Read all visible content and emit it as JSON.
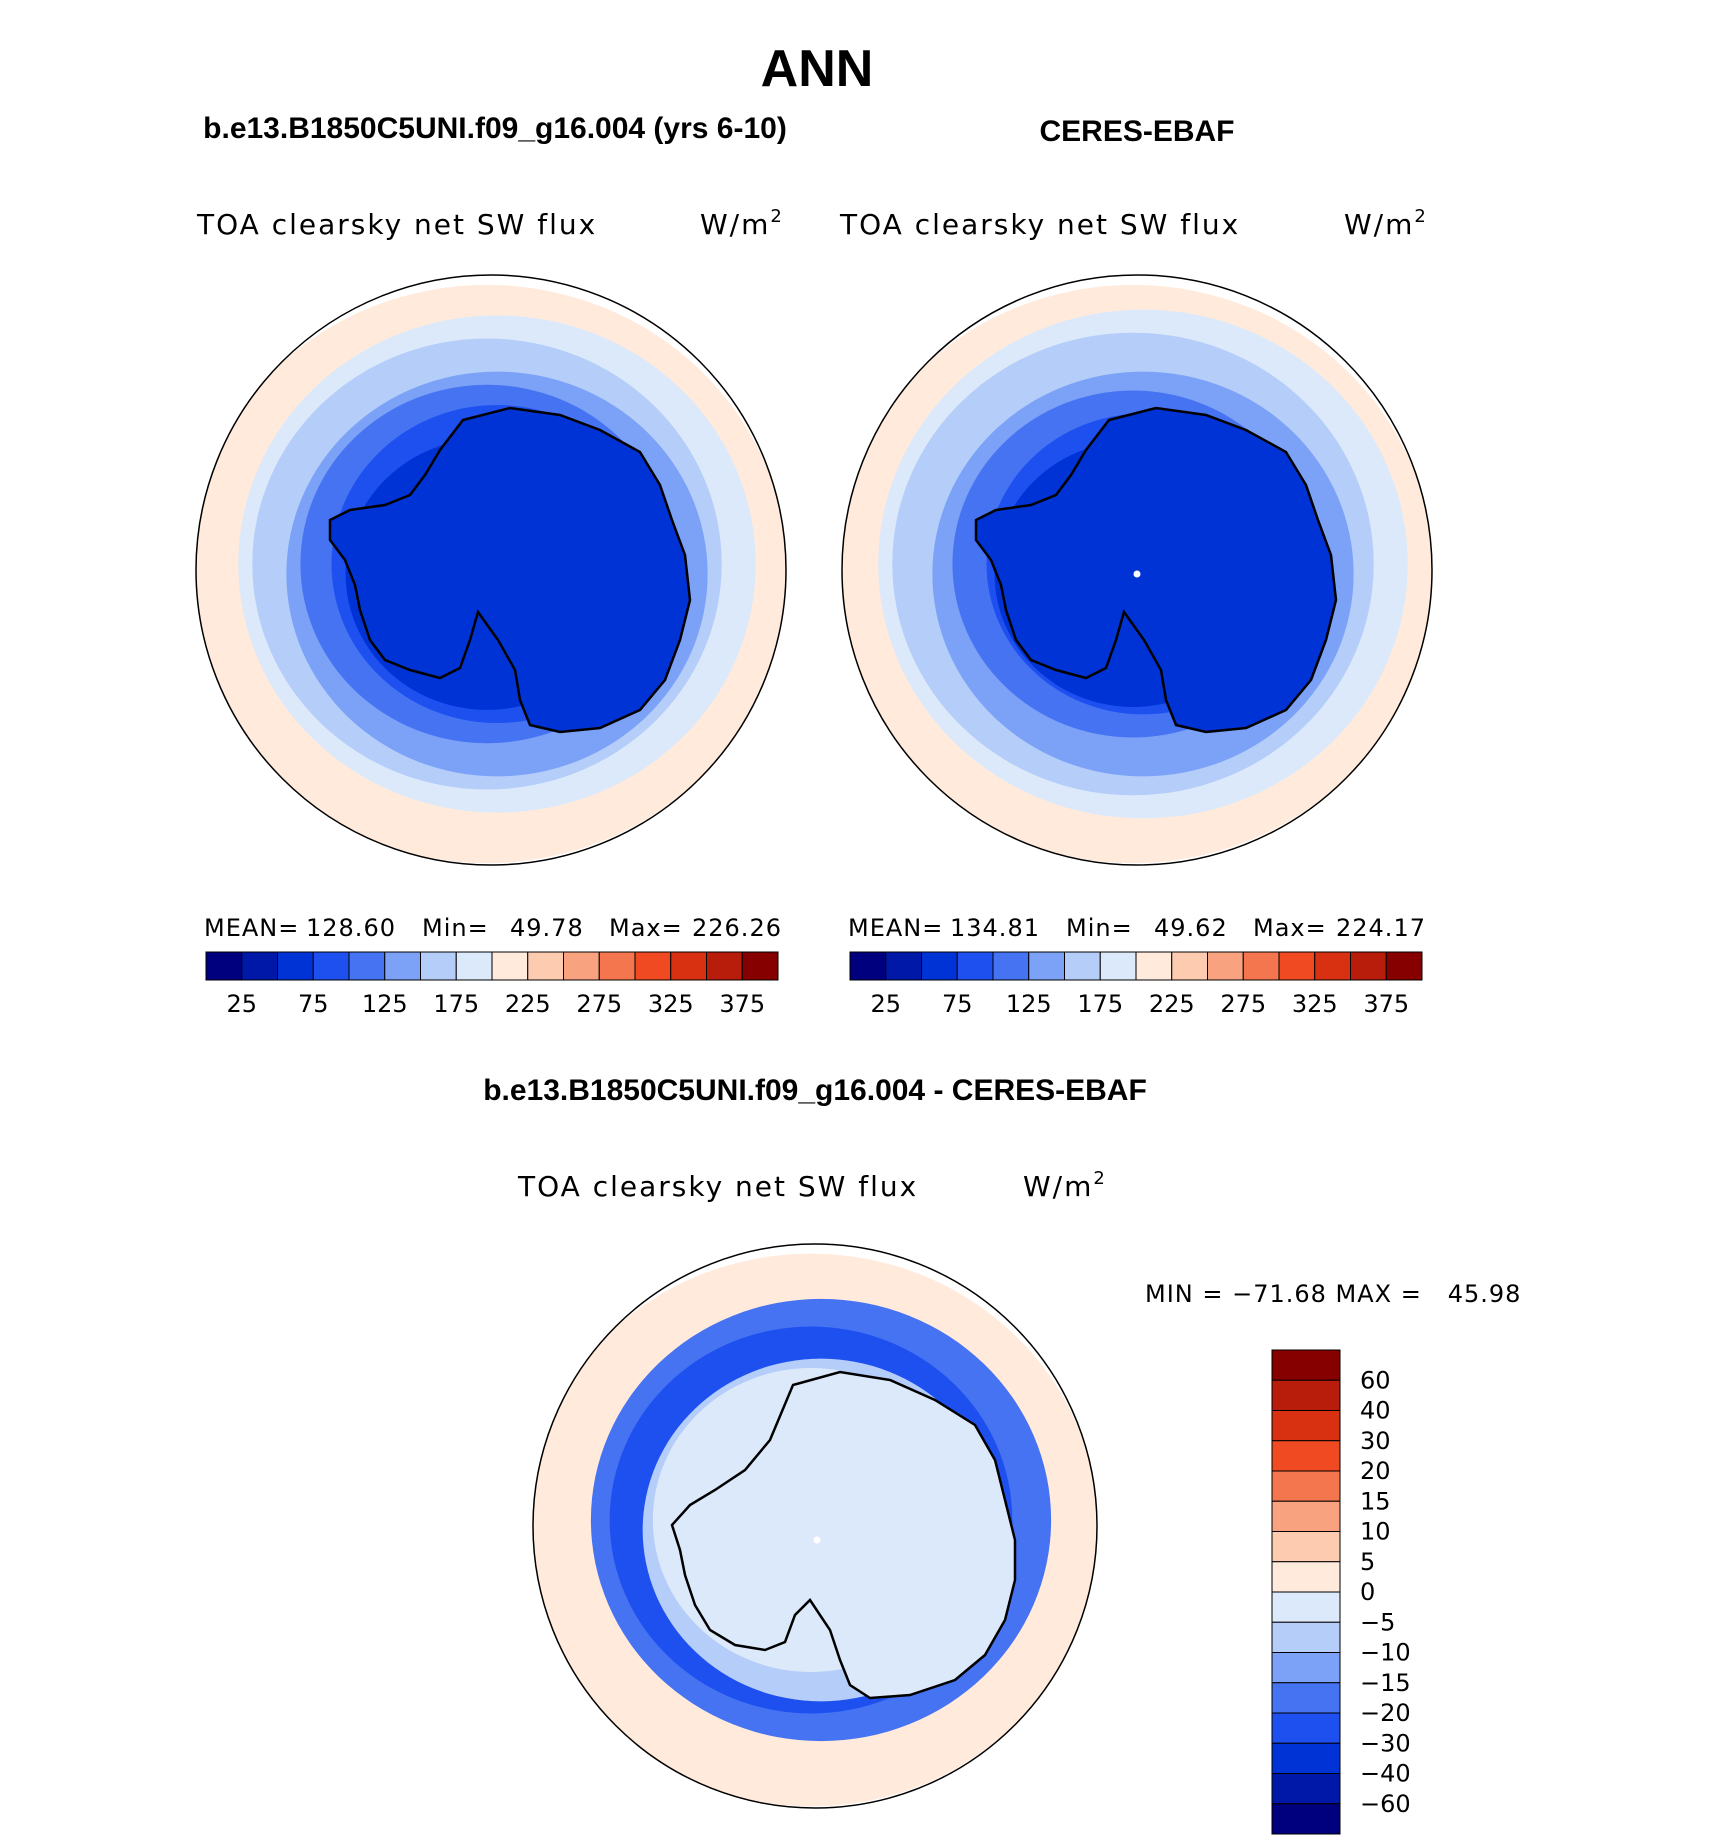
{
  "page_title": "ANN",
  "chart_data": [
    {
      "type": "heatmap",
      "projection": "south-polar-stereographic",
      "case_title": "b.e13.B1850C5UNI.f09_g16.004 (yrs 6-10)",
      "variable": "TOA clearsky net SW flux",
      "units": "W/m",
      "units_exp": "2",
      "stats": {
        "mean_label": "MEAN=",
        "mean": "128.60",
        "min_label": "Min=",
        "min": "49.78",
        "max_label": "Max=",
        "max": "226.26"
      },
      "colorbar": {
        "orientation": "horizontal",
        "colors": [
          "#00007f",
          "#0018a8",
          "#0033d6",
          "#1e50f0",
          "#4673f2",
          "#7ba2f7",
          "#b4cdf9",
          "#dce9fa",
          "#ffeadc",
          "#fccbb0",
          "#f8a27f",
          "#f4764f",
          "#f04a22",
          "#d83112",
          "#b81d0c",
          "#870000"
        ],
        "tick_labels": [
          "25",
          "75",
          "125",
          "175",
          "225",
          "275",
          "325",
          "375"
        ]
      },
      "rings": [
        {
          "value": 205,
          "color": "#ffeadc"
        },
        {
          "value": 185,
          "color": "#dce9fa"
        },
        {
          "value": 165,
          "color": "#b4cdf9"
        },
        {
          "value": 140,
          "color": "#7ba2f7"
        },
        {
          "value": 115,
          "color": "#4673f2"
        },
        {
          "value": 90,
          "color": "#1e50f0"
        },
        {
          "value": 60,
          "color": "#0033d6"
        }
      ]
    },
    {
      "type": "heatmap",
      "projection": "south-polar-stereographic",
      "case_title": "CERES-EBAF",
      "variable": "TOA clearsky net SW flux",
      "units": "W/m",
      "units_exp": "2",
      "stats": {
        "mean_label": "MEAN=",
        "mean": "134.81",
        "min_label": "Min=",
        "min": "49.62",
        "max_label": "Max=",
        "max": "224.17"
      },
      "colorbar": {
        "orientation": "horizontal",
        "colors": [
          "#00007f",
          "#0018a8",
          "#0033d6",
          "#1e50f0",
          "#4673f2",
          "#7ba2f7",
          "#b4cdf9",
          "#dce9fa",
          "#ffeadc",
          "#fccbb0",
          "#f8a27f",
          "#f4764f",
          "#f04a22",
          "#d83112",
          "#b81d0c",
          "#870000"
        ],
        "tick_labels": [
          "25",
          "75",
          "125",
          "175",
          "225",
          "275",
          "325",
          "375"
        ]
      },
      "rings": [
        {
          "value": 205,
          "color": "#ffeadc"
        },
        {
          "value": 185,
          "color": "#dce9fa"
        },
        {
          "value": 165,
          "color": "#b4cdf9"
        },
        {
          "value": 140,
          "color": "#7ba2f7"
        },
        {
          "value": 115,
          "color": "#4673f2"
        },
        {
          "value": 90,
          "color": "#1e50f0"
        },
        {
          "value": 60,
          "color": "#0033d6"
        }
      ]
    },
    {
      "type": "heatmap",
      "projection": "south-polar-stereographic",
      "case_title": "b.e13.B1850C5UNI.f09_g16.004 - CERES-EBAF",
      "variable": "TOA clearsky net SW flux",
      "units": "W/m",
      "units_exp": "2",
      "stats": {
        "text": "MIN = −71.68 MAX =   45.98",
        "min": -71.68,
        "max": 45.98
      },
      "colorbar": {
        "orientation": "vertical",
        "colors": [
          "#870000",
          "#b81d0c",
          "#d83112",
          "#f04a22",
          "#f4764f",
          "#f8a27f",
          "#fccbb0",
          "#ffeadc",
          "#dce9fa",
          "#b4cdf9",
          "#7ba2f7",
          "#4673f2",
          "#1e50f0",
          "#0033d6",
          "#0018a8",
          "#00007f"
        ],
        "tick_labels": [
          "60",
          "40",
          "30",
          "20",
          "15",
          "10",
          "5",
          "0",
          "−5",
          "−10",
          "−15",
          "−20",
          "−30",
          "−40",
          "−60"
        ]
      },
      "rings": [
        {
          "value": 5,
          "color": "#ffeadc"
        },
        {
          "value": -20,
          "color": "#4673f2"
        },
        {
          "value": -30,
          "color": "#1e50f0"
        },
        {
          "value": -10,
          "color": "#b4cdf9"
        },
        {
          "value": -5,
          "color": "#dce9fa"
        }
      ]
    }
  ]
}
